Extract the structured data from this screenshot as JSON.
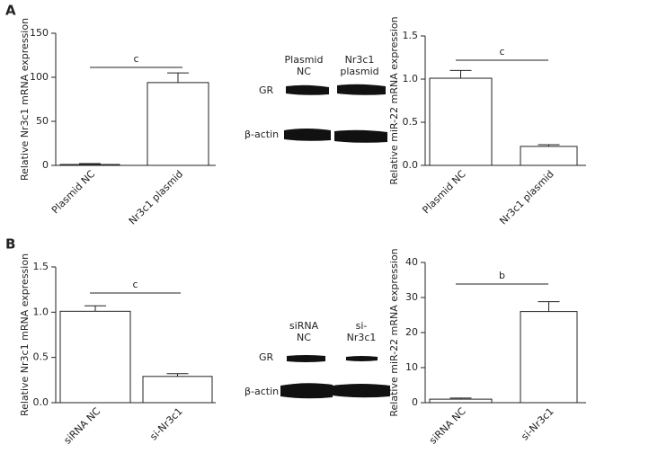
{
  "panel_labels": [
    "A",
    "B"
  ],
  "blots": [
    {
      "columns": [
        "Plasmid NC",
        "Nr3c1 plasmid"
      ],
      "rows": [
        "GR",
        "β-actin"
      ]
    },
    {
      "columns": [
        "siRNA NC",
        "si-Nr3c1"
      ],
      "rows": [
        "GR",
        "β-actin"
      ]
    }
  ],
  "chart_data": [
    {
      "type": "bar",
      "ylabel": "Relative Nr3c1 mRNA expression",
      "categories": [
        "Plasmid NC",
        "Nr3c1 plasmid"
      ],
      "values": [
        1,
        94
      ],
      "errors": [
        1,
        11
      ],
      "color": "#ffffff",
      "ylim": [
        0,
        150
      ],
      "yticks": [
        0,
        50,
        100,
        150
      ],
      "annotation": "c"
    },
    {
      "type": "bar",
      "ylabel": "Relative miR-22 mRNA expression",
      "categories": [
        "Plasmid NC",
        "Nr3c1 plasmid"
      ],
      "values": [
        1.01,
        0.22
      ],
      "errors": [
        0.09,
        0.02
      ],
      "color": "#ffffff",
      "ylim": [
        0,
        1.5
      ],
      "yticks": [
        {
          "value": 0,
          "label": "0.0"
        },
        0.5,
        {
          "value": 1,
          "label": "1.0"
        },
        1.5
      ],
      "annotation": "c"
    },
    {
      "type": "bar",
      "ylabel": "Relative Nr3c1 mRNA expression",
      "categories": [
        "siRNA NC",
        "si-Nr3c1"
      ],
      "values": [
        1.01,
        0.29
      ],
      "errors": [
        0.06,
        0.03
      ],
      "color": "#ffffff",
      "ylim": [
        0,
        1.5
      ],
      "yticks": [
        {
          "value": 0,
          "label": "0.0"
        },
        0.5,
        {
          "value": 1,
          "label": "1.0"
        },
        1.5
      ],
      "annotation": "c"
    },
    {
      "type": "bar",
      "ylabel": "Relative miR-22 mRNA expression",
      "categories": [
        "siRNA NC",
        "si-Nr3c1"
      ],
      "values": [
        1,
        26
      ],
      "errors": [
        0.3,
        2.8
      ],
      "color": "#ffffff",
      "ylim": [
        0,
        40
      ],
      "yticks": [
        0,
        10,
        20,
        30,
        40
      ],
      "annotation": "b"
    }
  ]
}
